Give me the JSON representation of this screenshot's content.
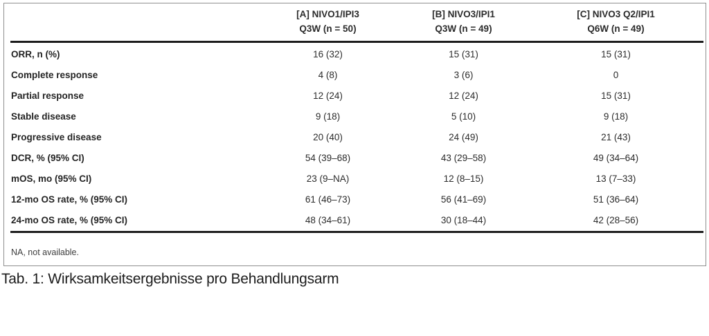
{
  "table": {
    "header": {
      "arms": [
        {
          "name": "[A] NIVO1/IPI3",
          "schedule": "Q3W (n = 50)"
        },
        {
          "name": "[B] NIVO3/IPI1",
          "schedule": "Q3W (n = 49)"
        },
        {
          "name": "[C] NIVO3 Q2/IPI1",
          "schedule": "Q6W (n = 49)"
        }
      ]
    },
    "rows": [
      {
        "label": "ORR, n (%)",
        "values": [
          "16 (32)",
          "15 (31)",
          "15 (31)"
        ]
      },
      {
        "label": "Complete response",
        "values": [
          "4 (8)",
          "3 (6)",
          "0"
        ]
      },
      {
        "label": "Partial response",
        "values": [
          "12 (24)",
          "12 (24)",
          "15 (31)"
        ]
      },
      {
        "label": "Stable disease",
        "values": [
          "9 (18)",
          "5 (10)",
          "9 (18)"
        ]
      },
      {
        "label": "Progressive disease",
        "values": [
          "20 (40)",
          "24 (49)",
          "21 (43)"
        ]
      },
      {
        "label": "DCR, % (95% CI)",
        "values": [
          "54 (39–68)",
          "43 (29–58)",
          "49 (34–64)"
        ]
      },
      {
        "label": "mOS, mo (95% CI)",
        "values": [
          "23 (9–NA)",
          "12 (8–15)",
          "13 (7–33)"
        ]
      },
      {
        "label": "12-mo OS rate, % (95% CI)",
        "values": [
          "61 (46–73)",
          "56 (41–69)",
          "51 (36–64)"
        ]
      },
      {
        "label": "24-mo OS rate, % (95% CI)",
        "values": [
          "48 (34–61)",
          "30 (18–44)",
          "42 (28–56)"
        ]
      }
    ],
    "footnote": "NA, not available."
  },
  "caption": "Tab. 1: Wirksamkeitsergebnisse pro Behandlungsarm",
  "colors": {
    "background": "#ffffff",
    "box_border": "#8f8f8f",
    "rule": "#1c1c1c",
    "text": "#2b2b2b"
  }
}
